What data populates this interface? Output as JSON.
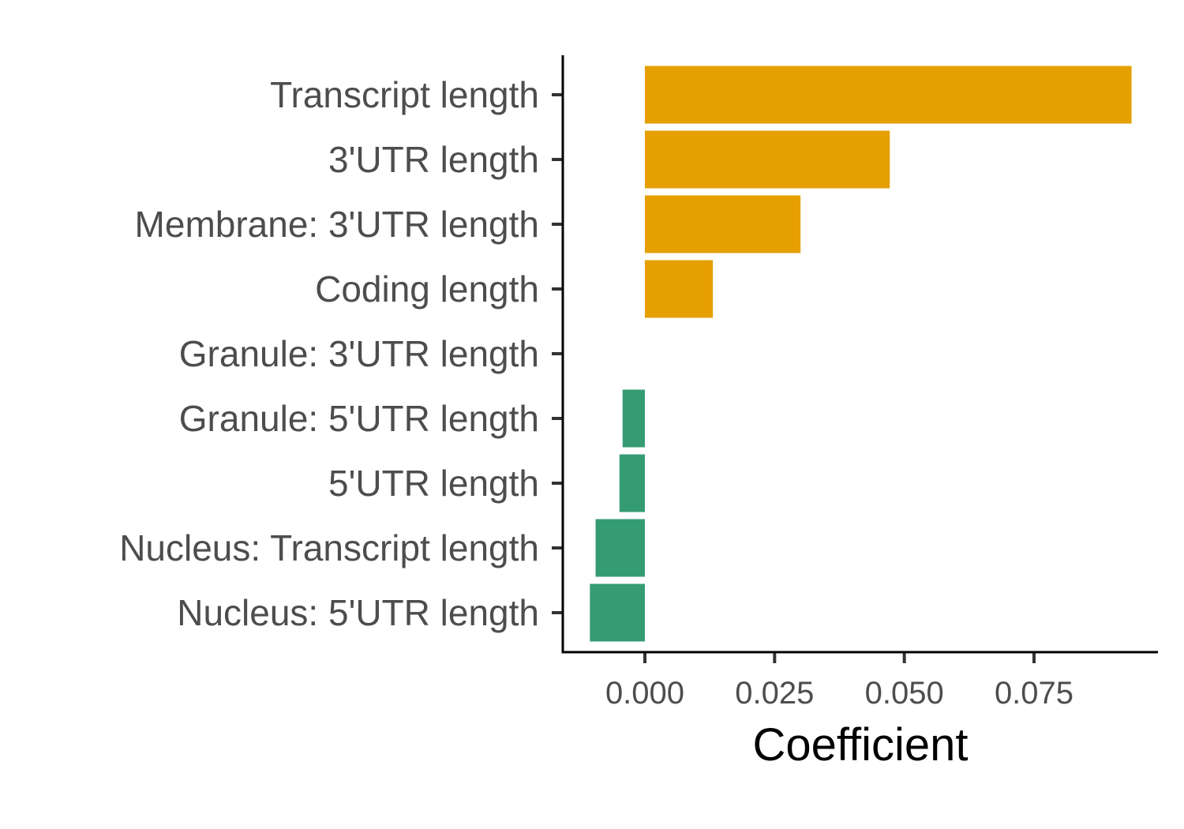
{
  "chart_data": {
    "type": "bar",
    "orientation": "horizontal",
    "categories": [
      "Transcript length",
      "3'UTR length",
      "Membrane: 3'UTR length",
      "Coding length",
      "Granule: 3'UTR length",
      "Granule: 5'UTR length",
      "5'UTR length",
      "Nucleus: Transcript length",
      "Nucleus: 5'UTR length"
    ],
    "values": [
      0.0938,
      0.0472,
      0.03,
      0.0131,
      0.0,
      -0.0043,
      -0.0049,
      -0.0095,
      -0.0106
    ],
    "xlabel": "Coefficient",
    "ylabel": "",
    "xlim": [
      -0.0158,
      0.099
    ],
    "xticks": [
      0.0,
      0.025,
      0.05,
      0.075
    ],
    "xtick_labels": [
      "0.000",
      "0.025",
      "0.050",
      "0.075"
    ],
    "colors": {
      "positive": "#E69F00",
      "negative": "#359B73"
    },
    "grid": false,
    "legend": "none"
  }
}
